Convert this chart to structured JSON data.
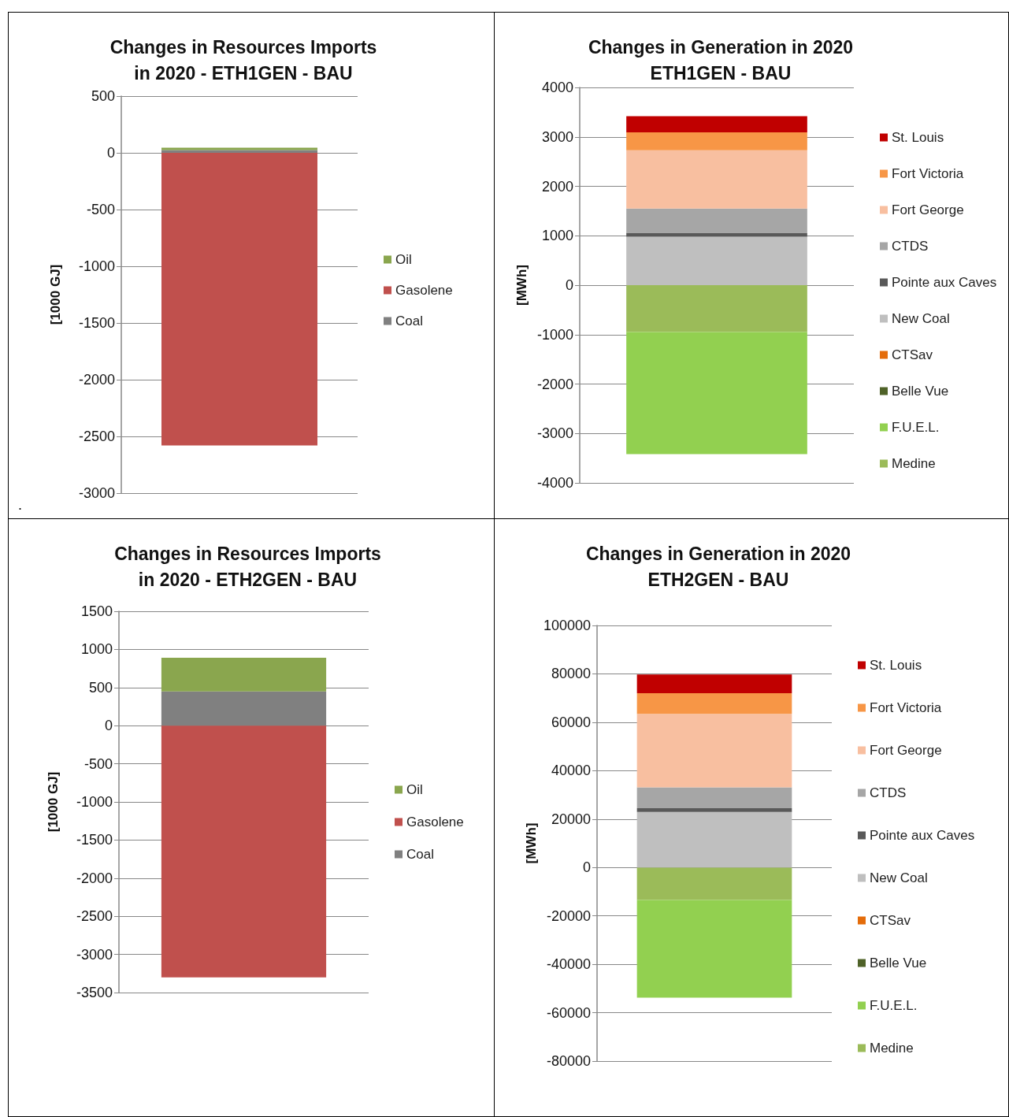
{
  "chart_data": [
    {
      "type": "bar",
      "title": "Changes in Resources Imports\nin 2020 - ETH1GEN - BAU",
      "ylabel": "[1000 GJ]",
      "categories": [
        null
      ],
      "stacked": true,
      "ylim": [
        -3000,
        500
      ],
      "yticks": [
        -3000,
        -2500,
        -2000,
        -1500,
        -1000,
        -500,
        0,
        500
      ],
      "grid": "y",
      "legend": "right",
      "annotations": [
        "."
      ],
      "series": [
        {
          "name": "Coal",
          "color": "#808080",
          "values": [
            25
          ]
        },
        {
          "name": "Gasolene",
          "color": "#c0504d",
          "values": [
            -2580
          ]
        },
        {
          "name": "Oil",
          "color": "#8aa64e",
          "values": [
            20
          ]
        }
      ]
    },
    {
      "type": "bar",
      "title": "Changes in Generation in 2020\nETH1GEN - BAU",
      "ylabel": "[MWh]",
      "categories": [
        null
      ],
      "stacked": true,
      "ylim": [
        -4000,
        4000
      ],
      "yticks": [
        -4000,
        -3000,
        -2000,
        -1000,
        0,
        1000,
        2000,
        3000,
        4000
      ],
      "grid": "y",
      "legend": "right",
      "series": [
        {
          "name": "Medine",
          "color": "#9bbb59",
          "values": [
            -950
          ]
        },
        {
          "name": "F.U.E.L.",
          "color": "#92d050",
          "values": [
            -2470
          ]
        },
        {
          "name": "Belle Vue",
          "color": "#4f6228",
          "values": [
            0
          ]
        },
        {
          "name": "CTSav",
          "color": "#e46c0a",
          "values": [
            0
          ]
        },
        {
          "name": "New Coal",
          "color": "#bfbfbf",
          "values": [
            980
          ]
        },
        {
          "name": "Pointe aux Caves",
          "color": "#595959",
          "values": [
            80
          ]
        },
        {
          "name": "CTDS",
          "color": "#a6a6a6",
          "values": [
            490
          ]
        },
        {
          "name": "Fort George",
          "color": "#f8bfa0",
          "values": [
            1180
          ]
        },
        {
          "name": "Fort Victoria",
          "color": "#f79646",
          "values": [
            360
          ]
        },
        {
          "name": "St. Louis",
          "color": "#c00000",
          "values": [
            330
          ]
        }
      ]
    },
    {
      "type": "bar",
      "title": "Changes in Resources Imports\nin 2020 - ETH2GEN - BAU",
      "ylabel": "[1000 GJ]",
      "categories": [
        null
      ],
      "stacked": true,
      "ylim": [
        -3500,
        1500
      ],
      "yticks": [
        -3500,
        -3000,
        -2500,
        -2000,
        -1500,
        -1000,
        -500,
        0,
        500,
        1000,
        1500
      ],
      "grid": "y",
      "legend": "right",
      "series": [
        {
          "name": "Coal",
          "color": "#808080",
          "values": [
            450
          ]
        },
        {
          "name": "Gasolene",
          "color": "#c0504d",
          "values": [
            -3300
          ]
        },
        {
          "name": "Oil",
          "color": "#8aa64e",
          "values": [
            440
          ]
        }
      ]
    },
    {
      "type": "bar",
      "title": "Changes in Generation in 2020\nETH2GEN - BAU",
      "ylabel": "[MWh]",
      "categories": [
        null
      ],
      "stacked": true,
      "ylim": [
        -80000,
        100000
      ],
      "yticks": [
        -80000,
        -60000,
        -40000,
        -20000,
        0,
        20000,
        40000,
        60000,
        80000,
        100000
      ],
      "grid": "y",
      "legend": "right",
      "series": [
        {
          "name": "Medine",
          "color": "#9bbb59",
          "values": [
            -13400
          ]
        },
        {
          "name": "F.U.E.L.",
          "color": "#92d050",
          "values": [
            -40400
          ]
        },
        {
          "name": "Belle Vue",
          "color": "#4f6228",
          "values": [
            0
          ]
        },
        {
          "name": "CTSav",
          "color": "#e46c0a",
          "values": [
            0
          ]
        },
        {
          "name": "New Coal",
          "color": "#bfbfbf",
          "values": [
            22900
          ]
        },
        {
          "name": "Pointe aux Caves",
          "color": "#595959",
          "values": [
            1600
          ]
        },
        {
          "name": "CTDS",
          "color": "#a6a6a6",
          "values": [
            8600
          ]
        },
        {
          "name": "Fort George",
          "color": "#f8bfa0",
          "values": [
            30400
          ]
        },
        {
          "name": "Fort Victoria",
          "color": "#f79646",
          "values": [
            8500
          ]
        },
        {
          "name": "St. Louis",
          "color": "#c00000",
          "values": [
            7700
          ]
        }
      ]
    }
  ]
}
